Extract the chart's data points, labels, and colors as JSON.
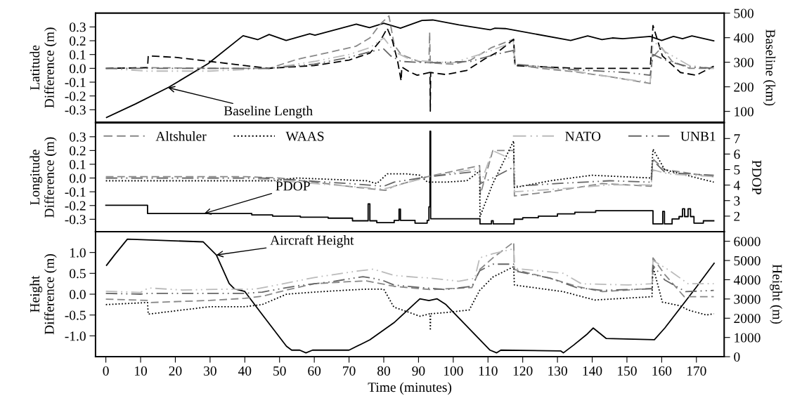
{
  "chart_data": [
    {
      "type": "line",
      "ylabel": "Latitude\nDifference (m)",
      "y2label": "Baseline (km)",
      "xlim": [
        -3,
        178
      ],
      "ylim": [
        -0.39,
        0.4
      ],
      "yticks": [
        -0.3,
        -0.2,
        -0.1,
        {
          "value": 0,
          "label": "0.0"
        },
        0.1,
        0.2,
        0.3
      ],
      "y2lim": [
        56,
        500
      ],
      "y2ticks": [
        100,
        200,
        300,
        400,
        500
      ],
      "tick_labels": "y",
      "grid": false,
      "legend": false,
      "marker": "none",
      "annotations": [
        {
          "text": "Baseline Length",
          "x": 17.9,
          "y": -0.14
        }
      ],
      "series": [
        {
          "color": "#888888",
          "line_style": "dashed",
          "x": [
            0,
            12,
            30,
            47,
            55,
            65,
            72,
            76,
            79,
            81.5,
            83,
            85,
            90,
            93,
            93.2,
            93.4,
            100,
            105,
            111,
            117.3,
            117.7,
            125,
            135,
            145,
            156.7,
            157.3,
            160,
            163,
            168,
            175
          ],
          "values": [
            0,
            0.005,
            0,
            0,
            0.065,
            0.12,
            0.16,
            0.22,
            0.32,
            0.38,
            0.17,
            0.1,
            0.05,
            0.04,
            0.26,
            0.04,
            0.03,
            0.06,
            0.15,
            0.21,
            0.03,
            0,
            -0.025,
            -0.06,
            -0.11,
            0.08,
            0.15,
            0.05,
            0,
            0
          ]
        },
        {
          "color": "#000000",
          "line_style": "dashed",
          "x": [
            0,
            12,
            12.2,
            20,
            30,
            40,
            47,
            60,
            70,
            76,
            79,
            81,
            82.5,
            84,
            85,
            85.2,
            87.4,
            89.6,
            93.3,
            93.4,
            93.5,
            97.9,
            103.9,
            109.2,
            112.9,
            117.4,
            117.8,
            135.4,
            156.7,
            157.5,
            160.2,
            165.4,
            169.9,
            175
          ],
          "values": [
            0,
            0.005,
            0.09,
            0.08,
            0.05,
            0.02,
            0,
            0.02,
            0.06,
            0.11,
            0.2,
            0.29,
            0.2,
            0.05,
            -0.09,
            0.01,
            -0.025,
            -0.05,
            -0.03,
            -0.31,
            -0.03,
            -0.045,
            -0.015,
            0.07,
            0.12,
            0.21,
            0.02,
            0,
            0,
            0.31,
            0.09,
            -0.03,
            -0.05,
            0.015
          ]
        },
        {
          "color": "#bbbbbb",
          "line_style": "dashdot",
          "x": [
            0,
            12,
            30,
            47,
            60,
            70,
            76,
            80,
            83,
            88,
            93,
            100,
            110,
            117.3,
            117.7,
            135,
            150,
            156.7,
            157.5,
            161,
            168,
            175
          ],
          "values": [
            0,
            -0.02,
            -0.02,
            0,
            0.05,
            0.1,
            0.15,
            0.22,
            0.12,
            0.06,
            0.05,
            0.04,
            0.12,
            0.19,
            0.03,
            -0.02,
            -0.08,
            -0.1,
            0.2,
            0.12,
            0.02,
            0
          ]
        },
        {
          "color": "#666666",
          "line_style": "dashdot",
          "x": [
            0,
            47,
            60,
            70,
            76,
            80,
            82,
            85,
            93,
            105,
            112,
            117.3,
            117.7,
            135,
            150,
            156.7,
            157.5,
            162,
            168,
            175
          ],
          "values": [
            0,
            0,
            0.03,
            0.08,
            0.12,
            0.14,
            0.09,
            0.05,
            0.04,
            0.05,
            0.1,
            0.13,
            0.03,
            -0.01,
            -0.03,
            -0.05,
            0.1,
            0.05,
            0.01,
            0
          ]
        },
        {
          "color": "#000000",
          "line_style": "solid",
          "axis": "y2",
          "x": [
            0.2,
            8.5,
            18.2,
            29.4,
            39.5,
            43.7,
            47,
            51.9,
            58.7,
            60.2,
            72.1,
            75.9,
            80,
            84.8,
            91,
            94.1,
            101.6,
            110.6,
            112,
            115,
            133.8,
            138.7,
            142.8,
            145.8,
            148.8,
            156.7,
            160,
            163.4,
            166,
            168.7,
            175
          ],
          "values": [
            75,
            130,
            199,
            294,
            408,
            392,
            413,
            389,
            416,
            410,
            455,
            441,
            459,
            439,
            470,
            472,
            452,
            432,
            439,
            437,
            389,
            407,
            392,
            399,
            396,
            405,
            389,
            405,
            396,
            407,
            387
          ]
        }
      ]
    },
    {
      "type": "line",
      "ylabel": "Longitude\nDifference (m)",
      "y2label": "PDOP",
      "xlim": [
        -3,
        178
      ],
      "ylim": [
        -0.39,
        0.4
      ],
      "yticks": [
        -0.3,
        -0.2,
        -0.1,
        {
          "value": 0,
          "label": "0.0"
        },
        0.1,
        0.2,
        0.3
      ],
      "y2lim": [
        1,
        8
      ],
      "y2ticks": [
        2,
        3,
        4,
        5,
        6,
        7
      ],
      "tick_labels": "y",
      "grid": false,
      "legend": "top",
      "marker": "none",
      "annotations": [
        {
          "text": "PDOP",
          "x": 28.3,
          "y": -0.258
        }
      ],
      "series": [
        {
          "name": "Altshuler",
          "color": "#888888",
          "line_style": "dashed",
          "x": [
            0,
            40,
            50,
            73,
            80.5,
            82.9,
            92.6,
            107.6,
            107.8,
            111.4,
            117.4,
            117.6,
            127.9,
            142.9,
            157,
            157.4,
            160.9,
            175
          ],
          "values": [
            0.01,
            0.01,
            0,
            -0.07,
            -0.09,
            -0.06,
            0.01,
            0.09,
            -0.12,
            0.2,
            0.2,
            -0.13,
            -0.1,
            -0.04,
            -0.06,
            0.14,
            0.06,
            0.01
          ]
        },
        {
          "name": "WAAS",
          "color": "#000000",
          "line_style": "dotted",
          "x": [
            0,
            48,
            55,
            75,
            78,
            81,
            86.6,
            90.4,
            92.6,
            97.9,
            103.9,
            107.6,
            107.7,
            111.4,
            117.4,
            117.6,
            127.9,
            139.9,
            157,
            157.5,
            160.9,
            175
          ],
          "values": [
            -0.02,
            -0.02,
            0,
            -0.02,
            -0.04,
            0.03,
            0.03,
            0.02,
            -0.03,
            -0.03,
            -0.02,
            0.05,
            -0.28,
            -0.04,
            0.27,
            -0.07,
            -0.02,
            0.02,
            0,
            0.21,
            0.06,
            -0.03
          ]
        },
        {
          "name": "NATO",
          "color": "#bbbbbb",
          "line_style": "dashdot",
          "x": [
            0,
            40,
            70,
            80,
            83,
            93,
            107.6,
            107.8,
            111.3,
            117.4,
            117.6,
            130,
            145,
            157,
            157.4,
            162,
            175
          ],
          "values": [
            0,
            0,
            -0.06,
            -0.08,
            -0.06,
            0.01,
            0.07,
            -0.05,
            0.2,
            0.13,
            -0.1,
            -0.08,
            -0.05,
            -0.05,
            0.06,
            0.03,
            0.01
          ]
        },
        {
          "name": "UNB1",
          "color": "#666666",
          "line_style": "dashdot",
          "x": [
            0,
            45,
            70,
            80,
            83,
            93,
            107.6,
            107.8,
            111.3,
            117.4,
            117.6,
            130,
            145,
            157,
            157.4,
            161,
            175
          ],
          "values": [
            0,
            0,
            -0.04,
            -0.06,
            -0.03,
            0.01,
            0.05,
            -0.04,
            0,
            0.08,
            -0.06,
            -0.04,
            -0.02,
            -0.03,
            0.13,
            0.04,
            0.02
          ]
        },
        {
          "type": "step",
          "color": "#000000",
          "line_style": "solid",
          "axis": "y2",
          "x": [
            0,
            12,
            42,
            48,
            56,
            64,
            71,
            75.5,
            76,
            78,
            83,
            84.4,
            84.8,
            89,
            92.5,
            93,
            93.3,
            93.5,
            107.7,
            111,
            111.5,
            117.5,
            120,
            124.5,
            130,
            135,
            141,
            157.5,
            160.3,
            160.8,
            163,
            165,
            166,
            166.6,
            167.6,
            168.3,
            169.3,
            172,
            175
          ],
          "values": [
            2.7,
            2.17,
            2.08,
            2.0,
            1.93,
            1.87,
            1.7,
            2.79,
            1.7,
            1.58,
            1.73,
            2.45,
            1.73,
            1.55,
            1.73,
            2.6,
            7.47,
            1.83,
            1.5,
            1.7,
            1.5,
            1.8,
            1.9,
            2.0,
            2.15,
            2.25,
            2.35,
            1.5,
            2.3,
            1.5,
            1.82,
            1.97,
            2.47,
            1.97,
            2.47,
            1.97,
            1.55,
            1.7,
            1.7
          ]
        }
      ]
    },
    {
      "type": "line",
      "xlabel": "Time (minutes)",
      "ylabel": "Height\nDifference (m)",
      "y2label": "Height (m)",
      "xlim": [
        -3,
        178
      ],
      "xticks": [
        0,
        10,
        20,
        30,
        40,
        50,
        60,
        70,
        80,
        90,
        100,
        110,
        120,
        130,
        140,
        150,
        160,
        170
      ],
      "ylim": [
        -1.5,
        1.5
      ],
      "yticks": [
        {
          "value": -1,
          "label": "-1.0"
        },
        -0.5,
        {
          "value": 0,
          "label": "0.0"
        },
        0.5,
        {
          "value": 1,
          "label": "1.0"
        }
      ],
      "y2lim": [
        0,
        6500
      ],
      "y2ticks": [
        0,
        1000,
        2000,
        3000,
        4000,
        5000,
        6000
      ],
      "grid": false,
      "legend": false,
      "marker": "none",
      "annotations": [
        {
          "text": "Aircraft Height",
          "x": 31.8,
          "y": 0.94
        }
      ],
      "series": [
        {
          "color": "#888888",
          "line_style": "dashed",
          "x": [
            0,
            12,
            13,
            30,
            40,
            45,
            52,
            60,
            70,
            75,
            82.9,
            93.4,
            105.4,
            107.6,
            111.4,
            117.4,
            117.6,
            128,
            135.4,
            142.9,
            157.2,
            157.5,
            160.9,
            166.5,
            175
          ],
          "values": [
            -0.12,
            -0.15,
            -0.2,
            -0.15,
            -0.1,
            -0.05,
            0.1,
            0.25,
            0.3,
            0.32,
            0.19,
            0.11,
            0.16,
            0.59,
            0.87,
            1.25,
            0.59,
            0.38,
            0.19,
            0.06,
            0.14,
            0.87,
            0.47,
            -0.06,
            -0.06
          ]
        },
        {
          "color": "#000000",
          "line_style": "dotted",
          "x": [
            0,
            12,
            12.2,
            20,
            30,
            40,
            45,
            52,
            60,
            70,
            75,
            80,
            82.9,
            87.4,
            90.4,
            93.3,
            93.4,
            93.5,
            97.9,
            104.6,
            107.6,
            111.4,
            117.4,
            117.6,
            131.7,
            140.7,
            157.2,
            157.5,
            160.2,
            165.4,
            167.6,
            172.9,
            175
          ],
          "values": [
            -0.25,
            -0.2,
            -0.48,
            -0.4,
            -0.3,
            -0.3,
            -0.25,
            0,
            0.05,
            0.1,
            0.12,
            0.12,
            -0.31,
            -0.44,
            -0.53,
            -0.47,
            -0.87,
            -0.47,
            -0.44,
            -0.38,
            0.09,
            0.41,
            0.66,
            0.22,
            0.06,
            -0.14,
            -0.06,
            0.66,
            -0.19,
            -0.28,
            -0.38,
            -0.5,
            -0.47
          ]
        },
        {
          "color": "#bbbbbb",
          "line_style": "dashdot",
          "x": [
            0,
            10,
            12.2,
            22,
            35,
            43,
            48,
            60,
            72,
            77,
            82.9,
            90.4,
            93,
            101.6,
            106.2,
            107.6,
            111.4,
            117.4,
            117.6,
            131.7,
            136.9,
            150.4,
            157.2,
            157.5,
            162.4,
            167.6,
            175
          ],
          "values": [
            0.07,
            0.04,
            0.15,
            0.1,
            0.12,
            0.12,
            0.2,
            0.4,
            0.55,
            0.6,
            0.45,
            0.4,
            0.39,
            0.31,
            0.38,
            0.87,
            0.97,
            1.09,
            0.62,
            0.5,
            0.25,
            0.22,
            0.25,
            0.81,
            0.56,
            0.25,
            0.25
          ]
        },
        {
          "color": "#666666",
          "line_style": "dashdot",
          "x": [
            0,
            10,
            12,
            40,
            45,
            55,
            65,
            74,
            77,
            80,
            82.9,
            90.4,
            97.9,
            105.4,
            107.6,
            111.4,
            117.4,
            117.6,
            128,
            135.4,
            142.9,
            157.2,
            157.5,
            160.9,
            166.9,
            175
          ],
          "values": [
            0.02,
            0,
            0.02,
            0.02,
            0.05,
            0.2,
            0.3,
            0.42,
            0.38,
            0.32,
            0.22,
            0.16,
            0.11,
            0.19,
            0.56,
            0.72,
            0.72,
            0.56,
            0.38,
            0.16,
            0.09,
            0.13,
            0.69,
            0.34,
            0.06,
            0.09
          ]
        },
        {
          "color": "#000000",
          "line_style": "solid",
          "axis": "y2",
          "x": [
            0.2,
            2.5,
            6.2,
            28,
            31.8,
            35.5,
            37,
            40,
            44.5,
            52,
            53.5,
            55.8,
            57.6,
            59.5,
            70,
            73.8,
            76,
            82.9,
            90.4,
            93,
            95.3,
            97.9,
            110.6,
            112.5,
            113.7,
            130.9,
            131.7,
            134.7,
            138.4,
            140.3,
            144,
            157.9,
            160.9,
            169.9,
            175.1
          ],
          "values": [
            4750,
            5290,
            6110,
            5970,
            5290,
            3800,
            3530,
            3390,
            2310,
            540,
            340,
            340,
            200,
            340,
            340,
            680,
            880,
            1760,
            3010,
            2920,
            3010,
            2710,
            340,
            200,
            340,
            300,
            200,
            610,
            1150,
            1490,
            950,
            880,
            1490,
            3600,
            4860
          ]
        }
      ]
    }
  ]
}
